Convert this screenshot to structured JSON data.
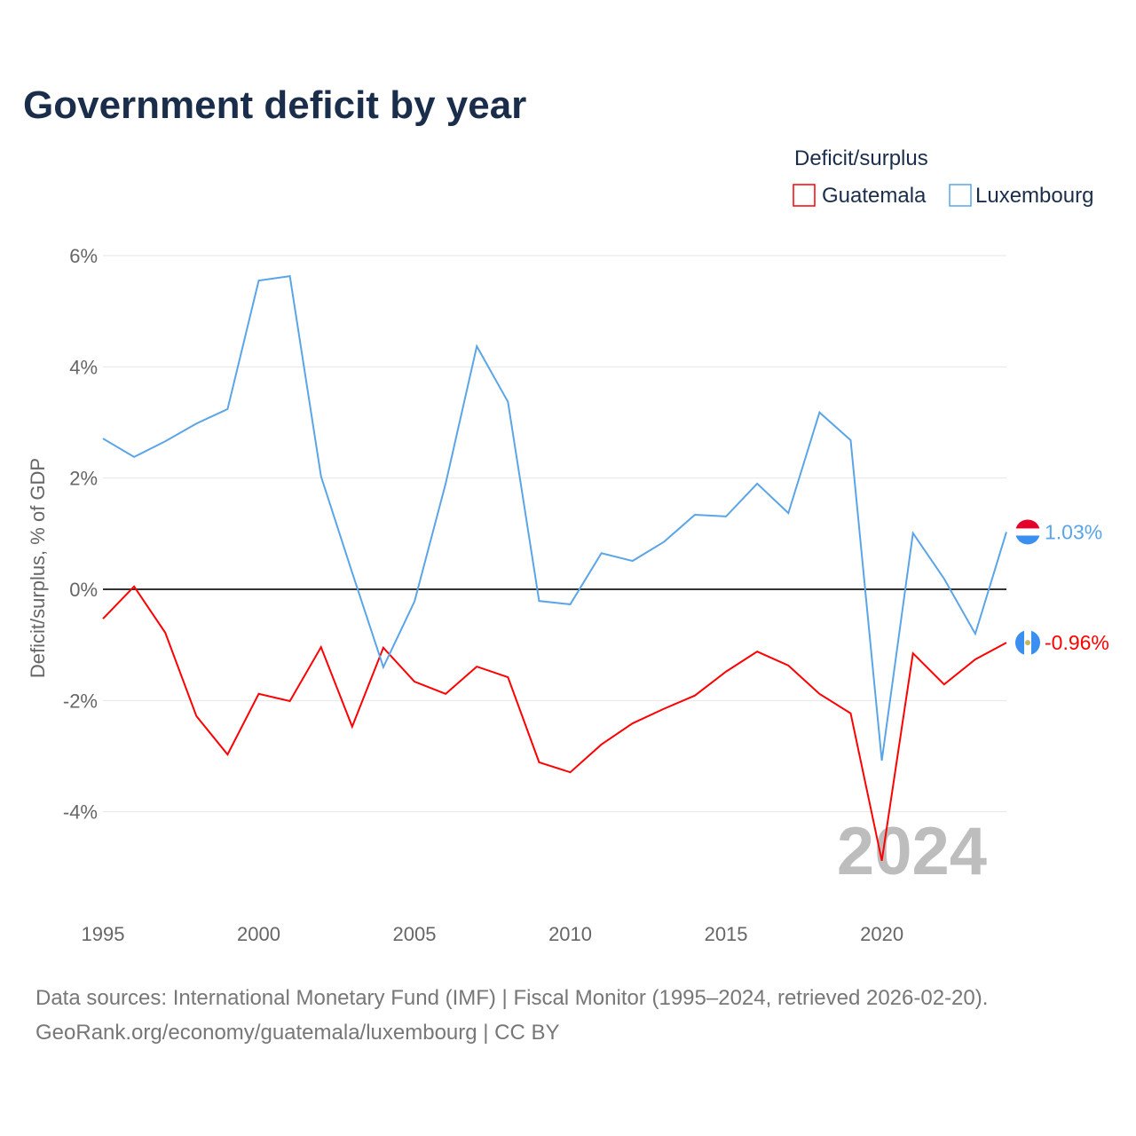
{
  "chart_data": {
    "type": "line",
    "title": "Government deficit by year",
    "xlabel": "",
    "ylabel": "Deficit/surplus, % of GDP",
    "legend_title": "Deficit/surplus",
    "legend_position": "top-right",
    "year_watermark": "2024",
    "x": [
      1995,
      1996,
      1997,
      1998,
      1999,
      2000,
      2001,
      2002,
      2003,
      2004,
      2005,
      2006,
      2007,
      2008,
      2009,
      2010,
      2011,
      2012,
      2013,
      2014,
      2015,
      2016,
      2017,
      2018,
      2019,
      2020,
      2021,
      2022,
      2023,
      2024
    ],
    "xlim": [
      1995,
      2024
    ],
    "ylim": [
      -5.5,
      6.5
    ],
    "x_ticks": [
      "1995",
      "2000",
      "2005",
      "2010",
      "2015",
      "2020"
    ],
    "y_ticks": [
      6,
      4,
      2,
      0,
      -2,
      -4
    ],
    "y_tick_labels": [
      "6%",
      "4%",
      "2%",
      "0%",
      "-2%",
      "-4%"
    ],
    "grid": true,
    "series": [
      {
        "name": "Guatemala",
        "color": "#ff0000",
        "end_label": "-0.96%",
        "values": [
          -0.53,
          0.05,
          -0.78,
          -2.28,
          -2.97,
          -1.88,
          -2.01,
          -1.04,
          -2.47,
          -1.05,
          -1.66,
          -1.88,
          -1.39,
          -1.58,
          -3.11,
          -3.29,
          -2.79,
          -2.41,
          -2.15,
          -1.91,
          -1.48,
          -1.12,
          -1.37,
          -1.88,
          -2.23,
          -4.88,
          -1.15,
          -1.71,
          -1.26,
          -0.96
        ]
      },
      {
        "name": "Luxembourg",
        "color": "#5aa5e8",
        "end_label": "1.03%",
        "values": [
          2.71,
          2.38,
          2.66,
          2.98,
          3.24,
          5.55,
          5.63,
          2.03,
          0.3,
          -1.4,
          -0.22,
          1.9,
          4.37,
          3.37,
          -0.21,
          -0.27,
          0.65,
          0.51,
          0.85,
          1.34,
          1.31,
          1.9,
          1.37,
          3.18,
          2.68,
          -3.08,
          1.01,
          0.19,
          -0.8,
          1.03
        ]
      }
    ]
  },
  "footer": {
    "line1": "Data sources: International Monetary Fund (IMF) | Fiscal Monitor (1995–2024, retrieved 2026-02-20).",
    "line2": "GeoRank.org/economy/guatemala/luxembourg | CC BY"
  }
}
